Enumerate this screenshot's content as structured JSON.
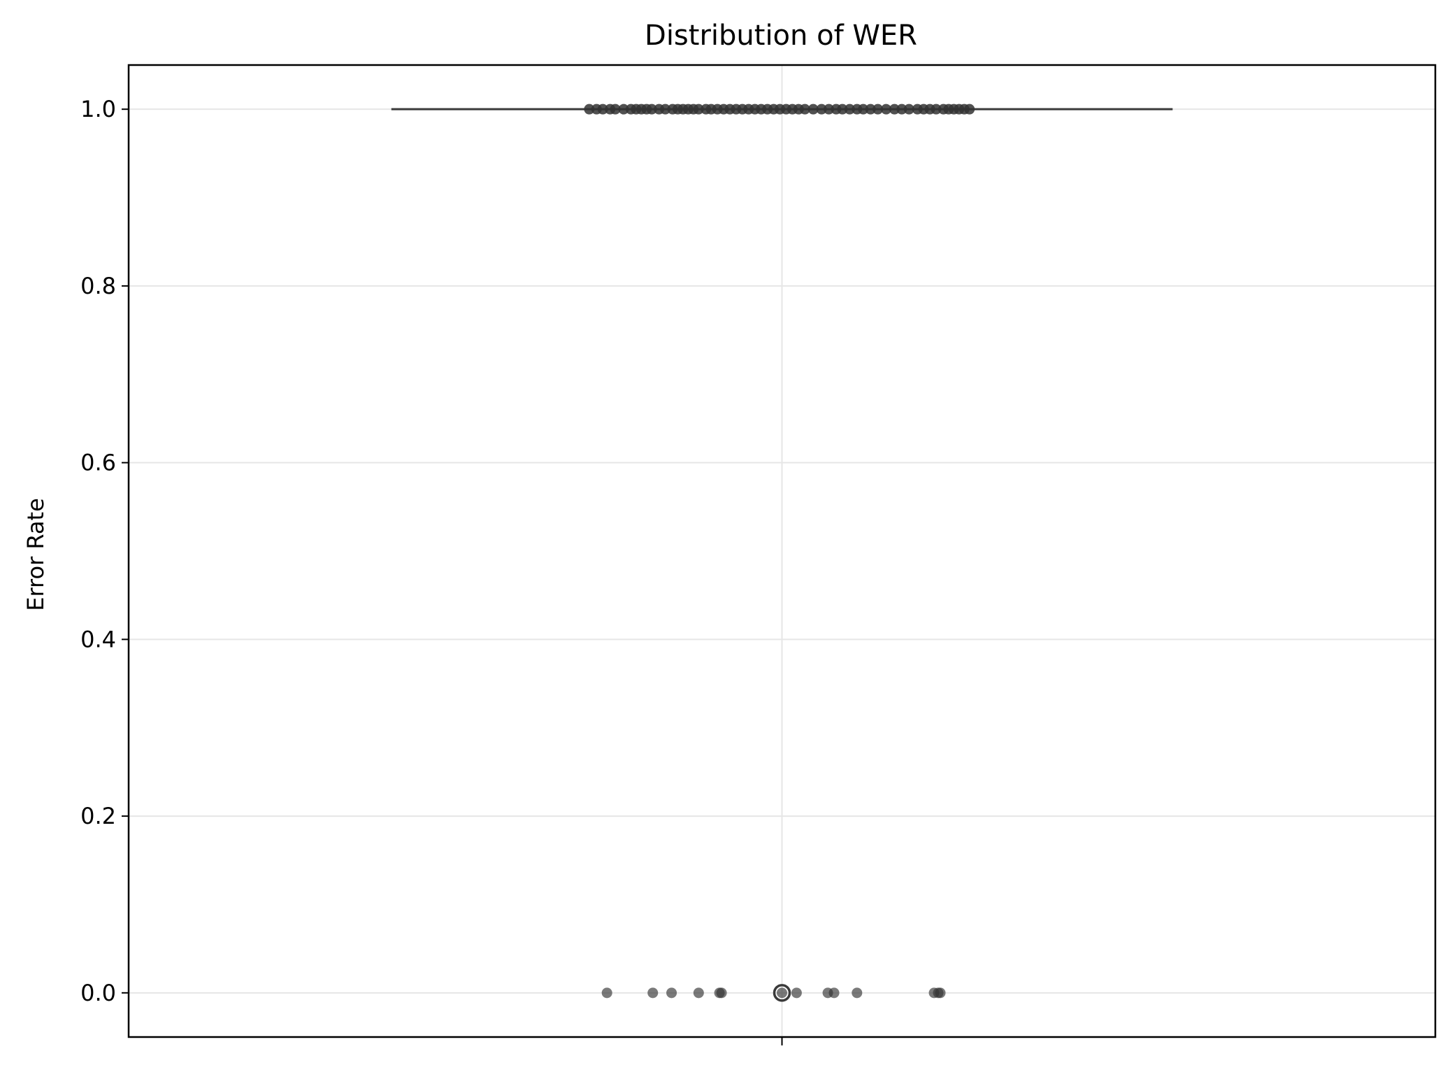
{
  "chart_data": {
    "type": "box",
    "title": "Distribution of WER",
    "xlabel": "",
    "ylabel": "Error Rate",
    "ylim": [
      -0.05,
      1.05
    ],
    "yticks": [
      0.0,
      0.2,
      0.4,
      0.6,
      0.8,
      1.0
    ],
    "ytick_labels": [
      "0.0",
      "0.2",
      "0.4",
      "0.6",
      "0.8",
      "1.0"
    ],
    "grid": true,
    "box": {
      "q1": 1.0,
      "median": 1.0,
      "q3": 1.0,
      "whisker_low": 1.0,
      "whisker_high": 1.0,
      "outliers": [
        0.0
      ]
    },
    "strip_points": {
      "y1_count": 60,
      "y0_count": 14,
      "jitter_at_1": [
        -0.185,
        -0.178,
        -0.172,
        -0.165,
        -0.16,
        -0.152,
        -0.145,
        -0.14,
        -0.135,
        -0.13,
        -0.125,
        -0.118,
        -0.112,
        -0.105,
        -0.1,
        -0.095,
        -0.09,
        -0.085,
        -0.08,
        -0.073,
        -0.068,
        -0.062,
        -0.056,
        -0.05,
        -0.044,
        -0.038,
        -0.032,
        -0.026,
        -0.02,
        -0.014,
        -0.008,
        -0.002,
        0.004,
        0.01,
        0.016,
        0.022,
        0.03,
        0.038,
        0.045,
        0.052,
        0.058,
        0.065,
        0.072,
        0.078,
        0.085,
        0.092,
        0.1,
        0.108,
        0.115,
        0.122,
        0.13,
        0.136,
        0.142,
        0.148,
        0.155,
        0.16,
        0.165,
        0.17,
        0.175,
        0.18
      ],
      "jitter_at_0": [
        -0.168,
        -0.124,
        -0.106,
        -0.08,
        -0.06,
        -0.058,
        0.0,
        0.014,
        0.044,
        0.05,
        0.072,
        0.146,
        0.15,
        0.152
      ]
    },
    "colors": {
      "points": "#333333",
      "box_line": "#3a3a3a",
      "grid": "#e6e6e6"
    }
  }
}
